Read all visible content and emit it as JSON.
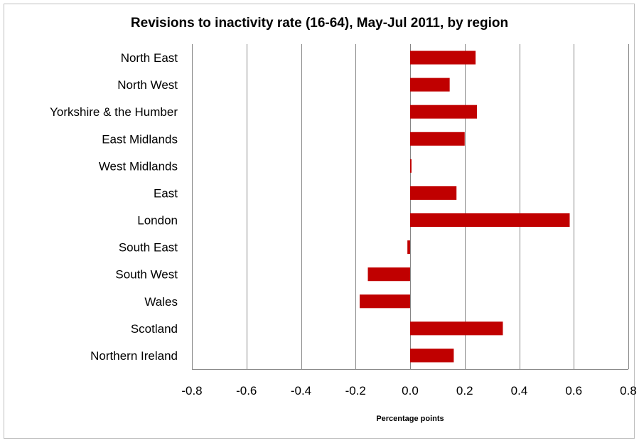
{
  "chart_data": {
    "type": "bar",
    "orientation": "horizontal",
    "title": "Revisions to inactivity  rate (16-64), May-Jul 2011, by region",
    "xlabel": "Percentage points",
    "ylabel": "",
    "categories": [
      "North East",
      "North West",
      "Yorkshire & the Humber",
      "East Midlands",
      "West Midlands",
      "East",
      "London",
      "South East",
      "South West",
      "Wales",
      "Scotland",
      "Northern Ireland"
    ],
    "values": [
      0.24,
      0.145,
      0.245,
      0.2,
      0.005,
      0.17,
      0.585,
      -0.01,
      -0.155,
      -0.185,
      0.34,
      0.16
    ],
    "xlim": [
      -0.8,
      0.8
    ],
    "xticks": [
      "-0.8",
      "-0.6",
      "-0.4",
      "-0.2",
      "0.0",
      "0.2",
      "0.4",
      "0.6",
      "0.8"
    ],
    "grid": "vertical",
    "legend": "none",
    "bar_color": "#c00000"
  }
}
